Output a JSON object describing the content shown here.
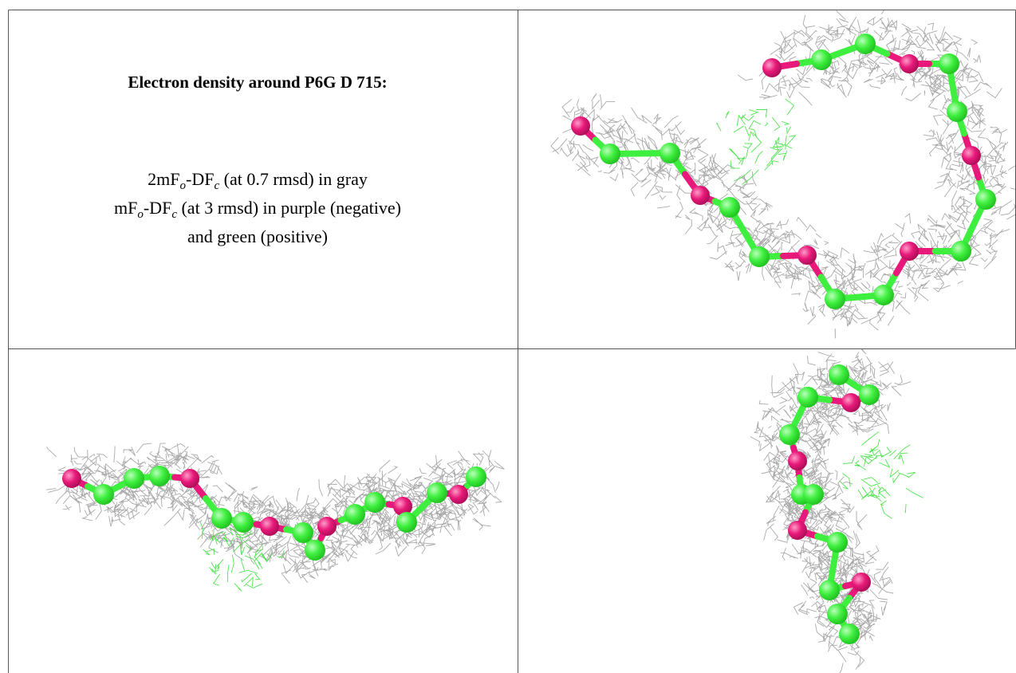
{
  "header": {
    "title": "Electron density around P6G D 715:"
  },
  "caption": {
    "lines": [
      [
        "2mF",
        "o",
        "-DF",
        "c",
        " (at 0.7 rmsd) in gray"
      ],
      [
        "mF",
        "o",
        "-DF",
        "c",
        " (at 3 rmsd) in purple (negative)"
      ],
      [
        "and green (positive)"
      ]
    ]
  }
}
